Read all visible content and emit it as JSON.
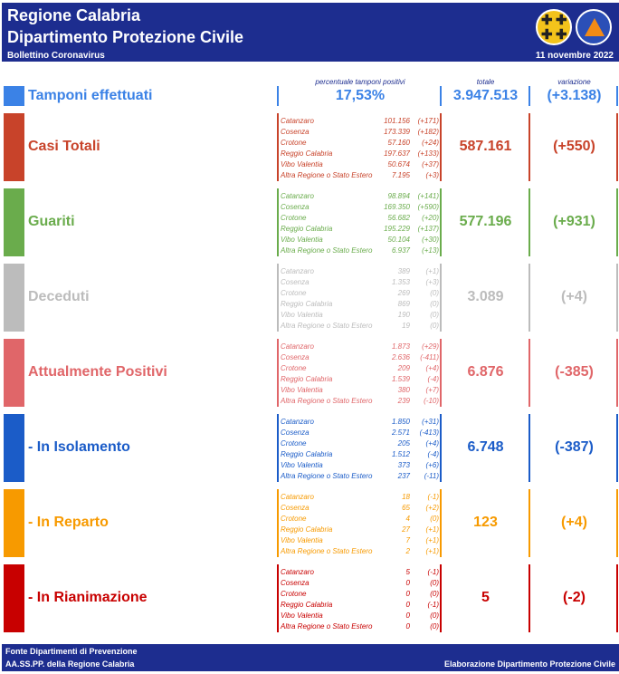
{
  "header": {
    "title_line1": "Regione Calabria",
    "title_line2": "Dipartimento Protezione Civile",
    "subtitle": "Bollettino Coronavirus",
    "date": "11 novembre 2022",
    "logo_pc_text": "PROTEZIONE CIVILE"
  },
  "columns": {
    "perc_label": "percentuale tamponi positivi",
    "total_label": "totale",
    "variation_label": "variazione"
  },
  "colors": {
    "header": "#1d2d8f",
    "tamponi": "#3b82e6",
    "casi": "#c8432a",
    "guariti": "#6aac4c",
    "deceduti": "#bcbcbc",
    "positivi": "#e06669",
    "isolamento": "#1b5cc8",
    "reparto": "#f79a00",
    "rianimazione": "#c80000"
  },
  "tamponi": {
    "label": "Tamponi effettuati",
    "percent": "17,53%",
    "total": "3.947.513",
    "variation": "(+3.138)"
  },
  "sections": [
    {
      "label": "Casi Totali",
      "total": "587.161",
      "variation": "(+550)",
      "provinces": [
        {
          "name": "Catanzaro",
          "value": "101.156",
          "delta": "(+171)"
        },
        {
          "name": "Cosenza",
          "value": "173.339",
          "delta": "(+182)"
        },
        {
          "name": "Crotone",
          "value": "57.160",
          "delta": "(+24)"
        },
        {
          "name": "Reggio Calabria",
          "value": "197.637",
          "delta": "(+133)"
        },
        {
          "name": "Vibo Valentia",
          "value": "50.674",
          "delta": "(+37)"
        },
        {
          "name": "Altra Regione o Stato Estero",
          "value": "7.195",
          "delta": "(+3)"
        }
      ]
    },
    {
      "label": "Guariti",
      "total": "577.196",
      "variation": "(+931)",
      "provinces": [
        {
          "name": "Catanzaro",
          "value": "98.894",
          "delta": "(+141)"
        },
        {
          "name": "Cosenza",
          "value": "169.350",
          "delta": "(+590)"
        },
        {
          "name": "Crotone",
          "value": "56.682",
          "delta": "(+20)"
        },
        {
          "name": "Reggio Calabria",
          "value": "195.229",
          "delta": "(+137)"
        },
        {
          "name": "Vibo Valentia",
          "value": "50.104",
          "delta": "(+30)"
        },
        {
          "name": "Altra Regione o Stato Estero",
          "value": "6.937",
          "delta": "(+13)"
        }
      ]
    },
    {
      "label": "Deceduti",
      "total": "3.089",
      "variation": "(+4)",
      "provinces": [
        {
          "name": "Catanzaro",
          "value": "389",
          "delta": "(+1)"
        },
        {
          "name": "Cosenza",
          "value": "1.353",
          "delta": "(+3)"
        },
        {
          "name": "Crotone",
          "value": "269",
          "delta": "(0)"
        },
        {
          "name": "Reggio Calabria",
          "value": "869",
          "delta": "(0)"
        },
        {
          "name": "Vibo Valentia",
          "value": "190",
          "delta": "(0)"
        },
        {
          "name": "Altra Regione o Stato Estero",
          "value": "19",
          "delta": "(0)"
        }
      ]
    },
    {
      "label": "Attualmente Positivi",
      "total": "6.876",
      "variation": "(-385)",
      "provinces": [
        {
          "name": "Catanzaro",
          "value": "1.873",
          "delta": "(+29)"
        },
        {
          "name": "Cosenza",
          "value": "2.636",
          "delta": "(-411)"
        },
        {
          "name": "Crotone",
          "value": "209",
          "delta": "(+4)"
        },
        {
          "name": "Reggio Calabria",
          "value": "1.539",
          "delta": "(-4)"
        },
        {
          "name": "Vibo Valentia",
          "value": "380",
          "delta": "(+7)"
        },
        {
          "name": "Altra Regione o Stato Estero",
          "value": "239",
          "delta": "(-10)"
        }
      ]
    },
    {
      "label": "- In Isolamento",
      "total": "6.748",
      "variation": "(-387)",
      "provinces": [
        {
          "name": "Catanzaro",
          "value": "1.850",
          "delta": "(+31)"
        },
        {
          "name": "Cosenza",
          "value": "2.571",
          "delta": "(-413)"
        },
        {
          "name": "Crotone",
          "value": "205",
          "delta": "(+4)"
        },
        {
          "name": "Reggio Calabria",
          "value": "1.512",
          "delta": "(-4)"
        },
        {
          "name": "Vibo Valentia",
          "value": "373",
          "delta": "(+6)"
        },
        {
          "name": "Altra Regione o Stato Estero",
          "value": "237",
          "delta": "(-11)"
        }
      ]
    },
    {
      "label": "- In Reparto",
      "total": "123",
      "variation": "(+4)",
      "provinces": [
        {
          "name": "Catanzaro",
          "value": "18",
          "delta": "(-1)"
        },
        {
          "name": "Cosenza",
          "value": "65",
          "delta": "(+2)"
        },
        {
          "name": "Crotone",
          "value": "4",
          "delta": "(0)"
        },
        {
          "name": "Reggio Calabria",
          "value": "27",
          "delta": "(+1)"
        },
        {
          "name": "Vibo Valentia",
          "value": "7",
          "delta": "(+1)"
        },
        {
          "name": "Altra Regione o Stato Estero",
          "value": "2",
          "delta": "(+1)"
        }
      ]
    },
    {
      "label": "- In Rianimazione",
      "total": "5",
      "variation": "(-2)",
      "provinces": [
        {
          "name": "Catanzaro",
          "value": "5",
          "delta": "(-1)"
        },
        {
          "name": "Cosenza",
          "value": "0",
          "delta": "(0)"
        },
        {
          "name": "Crotone",
          "value": "0",
          "delta": "(0)"
        },
        {
          "name": "Reggio Calabria",
          "value": "0",
          "delta": "(-1)"
        },
        {
          "name": "Vibo Valentia",
          "value": "0",
          "delta": "(0)"
        },
        {
          "name": "Altra Regione o Stato Estero",
          "value": "0",
          "delta": "(0)"
        }
      ]
    }
  ],
  "footer": {
    "source_line1": "Fonte Dipartimenti di Prevenzione",
    "source_line2": "AA.SS.PP.  della Regione Calabria",
    "credit": "Elaborazione Dipartimento Protezione Civile"
  }
}
